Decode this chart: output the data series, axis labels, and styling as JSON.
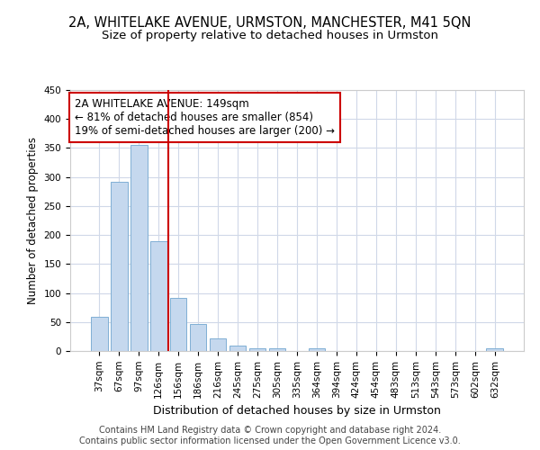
{
  "title1": "2A, WHITELAKE AVENUE, URMSTON, MANCHESTER, M41 5QN",
  "title2": "Size of property relative to detached houses in Urmston",
  "xlabel": "Distribution of detached houses by size in Urmston",
  "ylabel": "Number of detached properties",
  "categories": [
    "37sqm",
    "67sqm",
    "97sqm",
    "126sqm",
    "156sqm",
    "186sqm",
    "216sqm",
    "245sqm",
    "275sqm",
    "305sqm",
    "335sqm",
    "364sqm",
    "394sqm",
    "424sqm",
    "454sqm",
    "483sqm",
    "513sqm",
    "543sqm",
    "573sqm",
    "602sqm",
    "632sqm"
  ],
  "values": [
    59,
    291,
    355,
    190,
    91,
    46,
    21,
    9,
    5,
    5,
    0,
    5,
    0,
    0,
    0,
    0,
    0,
    0,
    0,
    0,
    5
  ],
  "bar_color": "#c5d8ee",
  "bar_edgecolor": "#7fafd4",
  "vline_color": "#cc0000",
  "vline_pos": 4,
  "annotation_text": "2A WHITELAKE AVENUE: 149sqm\n← 81% of detached houses are smaller (854)\n19% of semi-detached houses are larger (200) →",
  "annotation_box_edgecolor": "#cc0000",
  "ylim": [
    0,
    450
  ],
  "yticks": [
    0,
    50,
    100,
    150,
    200,
    250,
    300,
    350,
    400,
    450
  ],
  "footer": "Contains HM Land Registry data © Crown copyright and database right 2024.\nContains public sector information licensed under the Open Government Licence v3.0.",
  "bg_color": "#ffffff",
  "plot_bg_color": "#ffffff",
  "grid_color": "#d0d8e8",
  "title1_fontsize": 10.5,
  "title2_fontsize": 9.5,
  "xlabel_fontsize": 9,
  "ylabel_fontsize": 8.5,
  "tick_fontsize": 7.5,
  "annotation_fontsize": 8.5,
  "footer_fontsize": 7
}
